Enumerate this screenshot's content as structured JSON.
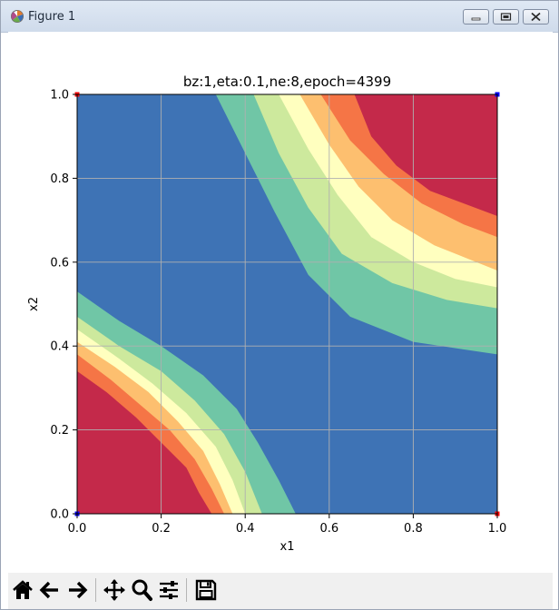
{
  "window": {
    "title": "Figure 1",
    "icons": [
      "figure-app-icon",
      "minimize-icon",
      "maximize-icon",
      "close-icon"
    ]
  },
  "toolbar": {
    "buttons": [
      "home-icon",
      "back-arrow-icon",
      "forward-arrow-icon",
      "pan-move-icon",
      "zoom-magnifier-icon",
      "configure-subplots-icon",
      "save-floppy-icon"
    ]
  },
  "chart_data": {
    "type": "contourf",
    "title": "bz:1,eta:0.1,ne:8,epoch=4399",
    "xlabel": "x1",
    "ylabel": "x2",
    "xlim": [
      0.0,
      1.0
    ],
    "ylim": [
      0.0,
      1.0
    ],
    "xticks": [
      "0.0",
      "0.2",
      "0.4",
      "0.6",
      "0.8",
      "1.0"
    ],
    "yticks": [
      "0.0",
      "0.2",
      "0.4",
      "0.6",
      "0.8",
      "1.0"
    ],
    "grid": true,
    "colormap": "Spectral",
    "level_colors": [
      "#3e73b5",
      "#70c6a6",
      "#cde99d",
      "#ffffbf",
      "#fdbf6f",
      "#f57546",
      "#c4294a"
    ],
    "background_color": "#3e73b5",
    "upper_right_bands": [
      {
        "color": "#70c6a6",
        "boundary": [
          [
            0.33,
            1.0
          ],
          [
            0.4,
            0.86
          ],
          [
            0.47,
            0.72
          ],
          [
            0.55,
            0.57
          ],
          [
            0.65,
            0.47
          ],
          [
            0.8,
            0.41
          ],
          [
            1.0,
            0.38
          ]
        ]
      },
      {
        "color": "#cde99d",
        "boundary": [
          [
            0.42,
            1.0
          ],
          [
            0.48,
            0.86
          ],
          [
            0.55,
            0.73
          ],
          [
            0.63,
            0.62
          ],
          [
            0.75,
            0.55
          ],
          [
            0.88,
            0.51
          ],
          [
            1.0,
            0.49
          ]
        ]
      },
      {
        "color": "#ffffbf",
        "boundary": [
          [
            0.48,
            1.0
          ],
          [
            0.55,
            0.87
          ],
          [
            0.62,
            0.76
          ],
          [
            0.7,
            0.66
          ],
          [
            0.8,
            0.6
          ],
          [
            0.9,
            0.56
          ],
          [
            1.0,
            0.54
          ]
        ]
      },
      {
        "color": "#fdbf6f",
        "boundary": [
          [
            0.53,
            1.0
          ],
          [
            0.6,
            0.88
          ],
          [
            0.67,
            0.78
          ],
          [
            0.75,
            0.7
          ],
          [
            0.85,
            0.64
          ],
          [
            1.0,
            0.58
          ]
        ]
      },
      {
        "color": "#f57546",
        "boundary": [
          [
            0.58,
            1.0
          ],
          [
            0.65,
            0.89
          ],
          [
            0.73,
            0.81
          ],
          [
            0.82,
            0.74
          ],
          [
            0.92,
            0.69
          ],
          [
            1.0,
            0.66
          ]
        ]
      },
      {
        "color": "#c4294a",
        "boundary": [
          [
            0.66,
            1.0
          ],
          [
            0.7,
            0.9
          ],
          [
            0.76,
            0.83
          ],
          [
            0.84,
            0.77
          ],
          [
            0.92,
            0.74
          ],
          [
            1.0,
            0.71
          ]
        ]
      }
    ],
    "lower_left_bands": [
      {
        "color": "#70c6a6",
        "boundary": [
          [
            0.0,
            0.53
          ],
          [
            0.1,
            0.46
          ],
          [
            0.2,
            0.4
          ],
          [
            0.3,
            0.33
          ],
          [
            0.38,
            0.25
          ],
          [
            0.43,
            0.17
          ],
          [
            0.48,
            0.08
          ],
          [
            0.52,
            0.0
          ]
        ]
      },
      {
        "color": "#cde99d",
        "boundary": [
          [
            0.0,
            0.47
          ],
          [
            0.1,
            0.4
          ],
          [
            0.2,
            0.34
          ],
          [
            0.28,
            0.27
          ],
          [
            0.35,
            0.19
          ],
          [
            0.4,
            0.1
          ],
          [
            0.44,
            0.0
          ]
        ]
      },
      {
        "color": "#ffffbf",
        "boundary": [
          [
            0.0,
            0.44
          ],
          [
            0.1,
            0.37
          ],
          [
            0.18,
            0.31
          ],
          [
            0.26,
            0.24
          ],
          [
            0.33,
            0.16
          ],
          [
            0.37,
            0.08
          ],
          [
            0.4,
            0.0
          ]
        ]
      },
      {
        "color": "#fdbf6f",
        "boundary": [
          [
            0.0,
            0.41
          ],
          [
            0.09,
            0.35
          ],
          [
            0.17,
            0.29
          ],
          [
            0.24,
            0.22
          ],
          [
            0.3,
            0.15
          ],
          [
            0.34,
            0.07
          ],
          [
            0.37,
            0.0
          ]
        ]
      },
      {
        "color": "#f57546",
        "boundary": [
          [
            0.0,
            0.38
          ],
          [
            0.08,
            0.32
          ],
          [
            0.15,
            0.26
          ],
          [
            0.22,
            0.2
          ],
          [
            0.28,
            0.13
          ],
          [
            0.32,
            0.06
          ],
          [
            0.35,
            0.0
          ]
        ]
      },
      {
        "color": "#c4294a",
        "boundary": [
          [
            0.0,
            0.34
          ],
          [
            0.07,
            0.29
          ],
          [
            0.14,
            0.23
          ],
          [
            0.2,
            0.17
          ],
          [
            0.26,
            0.11
          ],
          [
            0.29,
            0.05
          ],
          [
            0.32,
            0.0
          ]
        ]
      }
    ],
    "points": [
      {
        "x": 0.0,
        "y": 0.0,
        "color": "#0000ff"
      },
      {
        "x": 1.0,
        "y": 1.0,
        "color": "#0000ff"
      },
      {
        "x": 0.0,
        "y": 1.0,
        "color": "#ff0000"
      },
      {
        "x": 1.0,
        "y": 0.0,
        "color": "#ff0000"
      }
    ]
  }
}
